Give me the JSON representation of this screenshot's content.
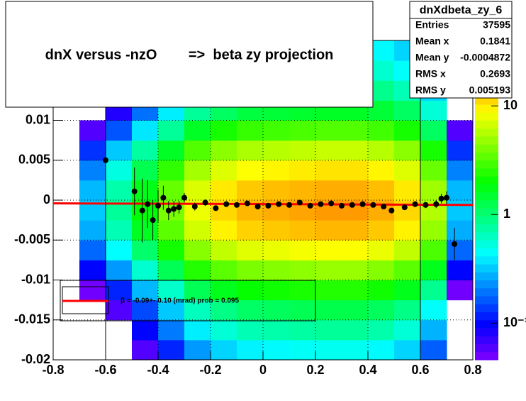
{
  "chart_data": {
    "type": "heatmap",
    "title": "dnX versus -nzO        =>  beta zy projection",
    "xlim": [
      -0.8,
      0.8
    ],
    "ylim": [
      -0.02,
      0.02
    ],
    "xticks": [
      -0.8,
      -0.6,
      -0.4,
      -0.2,
      0,
      0.2,
      0.4,
      0.6,
      0.8
    ],
    "yticks": [
      -0.02,
      -0.015,
      -0.01,
      -0.005,
      0,
      0.005,
      0.01
    ],
    "grid": true,
    "xbins": [
      -0.8,
      -0.7,
      -0.6,
      -0.5,
      -0.4,
      -0.3,
      -0.2,
      -0.1,
      0,
      0.1,
      0.2,
      0.3,
      0.4,
      0.5,
      0.6,
      0.7,
      0.8
    ],
    "ybins": [
      -0.02,
      -0.0175,
      -0.015,
      -0.0125,
      -0.01,
      -0.0075,
      -0.005,
      -0.0025,
      0,
      0.0025,
      0.005,
      0.0075,
      0.01,
      0.0125,
      0.015,
      0.0175,
      0.02
    ],
    "z": [
      [
        0,
        0,
        0,
        0.06,
        0.12,
        0.24,
        0.34,
        0.41,
        0.43,
        0.46,
        0.48,
        0.48,
        0.43,
        0.34,
        0.17,
        0
      ],
      [
        0,
        0,
        0,
        0.1,
        0.2,
        0.4,
        0.56,
        0.68,
        0.72,
        0.76,
        0.8,
        0.8,
        0.72,
        0.56,
        0.28,
        0
      ],
      [
        0,
        0,
        0.06,
        0.15,
        0.32,
        0.64,
        0.9,
        1.09,
        1.15,
        1.22,
        1.28,
        1.28,
        1.15,
        0.9,
        0.45,
        0
      ],
      [
        0,
        0.05,
        0.12,
        0.29,
        0.6,
        1.2,
        1.68,
        2.04,
        2.16,
        2.28,
        2.4,
        2.4,
        2.16,
        1.68,
        0.84,
        0.05
      ],
      [
        0,
        0.1,
        0.24,
        0.58,
        1.2,
        2.4,
        3.36,
        4.08,
        4.32,
        4.56,
        4.8,
        4.8,
        4.32,
        3.36,
        1.68,
        0.1
      ],
      [
        0,
        0.18,
        0.44,
        1.06,
        2.2,
        4.4,
        6.16,
        7.48,
        7.92,
        8.36,
        8.8,
        8.8,
        7.92,
        6.16,
        3.08,
        0.18
      ],
      [
        0,
        0.27,
        0.68,
        1.63,
        3.4,
        6.8,
        9.52,
        11.56,
        12.24,
        12.92,
        13.6,
        13.6,
        12.24,
        9.52,
        4.76,
        0.27
      ],
      [
        0,
        0.32,
        0.8,
        1.92,
        4,
        8,
        11.2,
        13.6,
        14.4,
        15.2,
        16,
        16,
        14.4,
        11.2,
        5.6,
        0.32
      ],
      [
        0,
        0.29,
        0.72,
        1.73,
        3.6,
        7.2,
        10.08,
        12.24,
        12.96,
        13.68,
        14.4,
        14.4,
        12.96,
        10.08,
        5.04,
        0.29
      ],
      [
        0,
        0.21,
        0.52,
        1.25,
        2.6,
        5.2,
        7.28,
        8.84,
        9.36,
        9.88,
        10.4,
        10.4,
        9.36,
        7.28,
        3.64,
        0.21
      ],
      [
        0,
        0.13,
        0.32,
        0.77,
        1.6,
        3.2,
        4.48,
        5.44,
        5.76,
        6.08,
        6.4,
        6.4,
        5.76,
        4.48,
        2.24,
        0.13
      ],
      [
        0,
        0.06,
        0.16,
        0.38,
        0.8,
        1.6,
        2.24,
        2.72,
        2.88,
        3.04,
        3.2,
        3.2,
        2.88,
        2.24,
        1.12,
        0.06
      ],
      [
        0,
        0,
        0.08,
        0.19,
        0.4,
        0.8,
        1.12,
        1.36,
        1.44,
        1.52,
        1.6,
        1.6,
        1.44,
        1.12,
        0.56,
        0
      ],
      [
        0,
        0,
        0.05,
        0.12,
        0.24,
        0.48,
        0.67,
        0.82,
        0.86,
        0.91,
        0.96,
        0.96,
        0.86,
        0.67,
        0.34,
        0
      ],
      [
        0,
        0,
        0,
        0.08,
        0.16,
        0.32,
        0.45,
        0.54,
        0.58,
        0.61,
        0.64,
        0.64,
        0.58,
        0.45,
        0.22,
        0
      ],
      [
        0,
        0,
        0,
        0.06,
        0.12,
        0.24,
        0.34,
        0.41,
        0.43,
        0.46,
        0.48,
        0.48,
        0.43,
        0.34,
        0.17,
        0
      ]
    ],
    "zlim": [
      0.046,
      40
    ],
    "zlog": true,
    "zticks": [
      {
        "value": 0.1,
        "label": "10⁻¹"
      },
      1,
      10
    ],
    "profile": {
      "color": "#000000",
      "x": [
        -0.6,
        -0.49,
        -0.46,
        -0.44,
        -0.42,
        -0.4,
        -0.38,
        -0.36,
        -0.34,
        -0.32,
        -0.3,
        -0.26,
        -0.22,
        -0.18,
        -0.14,
        -0.1,
        -0.06,
        -0.02,
        0.02,
        0.06,
        0.1,
        0.14,
        0.18,
        0.22,
        0.26,
        0.3,
        0.34,
        0.38,
        0.42,
        0.46,
        0.49,
        0.54,
        0.58,
        0.62,
        0.66,
        0.68,
        0.7,
        0.73
      ],
      "y": [
        0.005,
        0.0011,
        -0.0013,
        -0.0005,
        -0.0025,
        -0.0007,
        0.0003,
        -0.0013,
        -0.0011,
        -0.0009,
        0.0003,
        -0.0008,
        -0.0003,
        -0.001,
        -0.0005,
        -0.0006,
        -0.0004,
        -0.0008,
        -0.0007,
        -0.0005,
        -0.0006,
        -0.0003,
        -0.0007,
        -0.0005,
        -0.0004,
        -0.0007,
        -0.0006,
        -0.0005,
        -0.0006,
        -0.0008,
        -0.0013,
        -0.0009,
        -0.0005,
        -0.0006,
        -0.0005,
        0.0002,
        0.0003,
        -0.0055
      ],
      "err": [
        0.006,
        0.003,
        0.004,
        0.003,
        0.0025,
        0.002,
        0.0015,
        0.0012,
        0.001,
        0.0008,
        0.0006,
        0.0005,
        0.0004,
        0.0003,
        0.0003,
        0.0003,
        0.0002,
        0.0002,
        0.0002,
        0.0002,
        0.0002,
        0.0002,
        0.0002,
        0.0002,
        0.0002,
        0.0002,
        0.0002,
        0.0002,
        0.0002,
        0.0003,
        0.0003,
        0.0003,
        0.0003,
        0.0004,
        0.0005,
        0.0006,
        0.0008,
        0.002
      ]
    },
    "fit": {
      "color": "#ff0000",
      "x": [
        -0.8,
        0.8
      ],
      "y": [
        -0.0004,
        -0.0006
      ]
    },
    "cut_lines": [
      -0.6,
      0.6
    ],
    "legend": {
      "label": "β =   -0.09+- 0.10 (mrad) prob = 0.095"
    },
    "stats": {
      "title": "dnXdbeta_zy_6",
      "rows": [
        [
          "Entries",
          37595
        ],
        [
          "Mean x",
          0.1841
        ],
        [
          "Mean y",
          -0.0004872
        ],
        [
          "RMS x",
          0.2693
        ],
        [
          "RMS y",
          0.005193
        ]
      ]
    }
  }
}
